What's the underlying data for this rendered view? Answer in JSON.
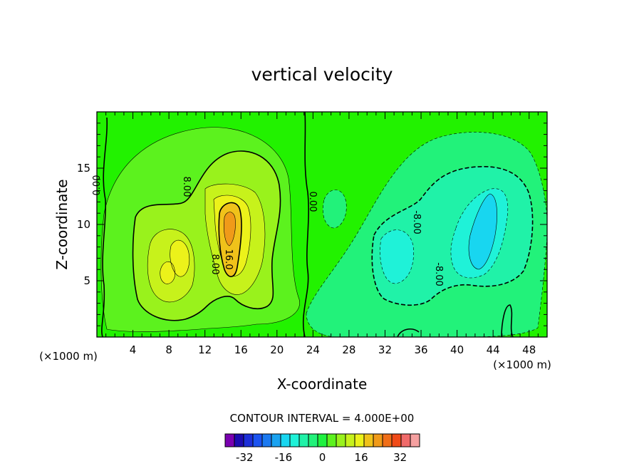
{
  "chart_data": {
    "type": "heatmap",
    "title": "vertical velocity",
    "xlabel": "X-coordinate",
    "ylabel": "Z-coordinate",
    "x_unit_left": "(×1000 m)",
    "x_unit_right": "(×1000 m)",
    "xlim": [
      0,
      50
    ],
    "ylim": [
      0,
      20
    ],
    "x_ticks": [
      4,
      8,
      12,
      16,
      20,
      24,
      28,
      32,
      36,
      40,
      44,
      48
    ],
    "y_ticks": [
      5,
      10,
      15
    ],
    "contour_interval_text": "CONTOUR INTERVAL = 4.000E+00",
    "contour_labels": [
      "0.00",
      "8.00",
      "8.00",
      "16.0",
      "0.00",
      "-8.00",
      "-8.00"
    ],
    "colorbar": {
      "levels": [
        -40,
        -36,
        -32,
        -28,
        -24,
        -20,
        -16,
        -12,
        -8,
        -4,
        0,
        4,
        8,
        12,
        16,
        20,
        24,
        28,
        32,
        36,
        40
      ],
      "colors": [
        "#7a00b0",
        "#1d0bb0",
        "#1c2fd8",
        "#1b53f0",
        "#1b79f0",
        "#1aa2f0",
        "#18d6f0",
        "#1ff2d8",
        "#20f2a8",
        "#22f27a",
        "#1ff240",
        "#5cf21e",
        "#99f21c",
        "#c7f21b",
        "#ecf21a",
        "#f0c21a",
        "#f09a19",
        "#f06e18",
        "#f04a18",
        "#f06a6a",
        "#f5a0a0"
      ],
      "tick_labels": [
        "-32",
        "-16",
        "0",
        "16",
        "32"
      ],
      "tick_values": [
        -32,
        -16,
        0,
        16,
        32
      ]
    },
    "cells": [
      {
        "x": 11,
        "z": 9,
        "v": 8
      },
      {
        "x": 14.5,
        "z": 10,
        "v": 20
      },
      {
        "x": 15,
        "z": 11,
        "v": 24
      },
      {
        "x": 42,
        "z": 9,
        "v": -12
      },
      {
        "x": 35,
        "z": 9,
        "v": -8
      }
    ],
    "colors": {
      "background": "#22f200",
      "frame": "#000000"
    }
  }
}
